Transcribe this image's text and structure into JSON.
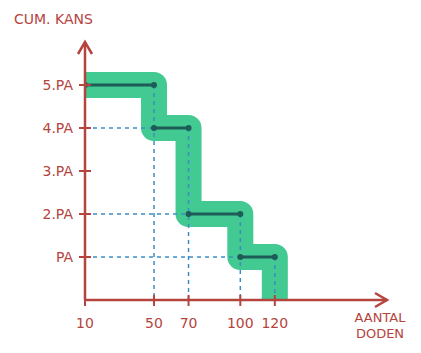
{
  "chart_data": {
    "type": "step",
    "y_label": "CUM. KANS",
    "x_label": "AANTAL DODEN",
    "x": [
      10,
      50,
      70,
      100
    ],
    "x_end": [
      50,
      70,
      100,
      120
    ],
    "values": [
      5,
      4,
      2,
      1
    ],
    "color": "#1d5c57",
    "xlim": [
      10,
      185
    ],
    "xticks": [
      10,
      50,
      70,
      100,
      120
    ],
    "ylim": [
      0,
      6
    ],
    "yticks": [
      {
        "value": 1,
        "label": "PA"
      },
      {
        "value": 2,
        "label": "2.PA"
      },
      {
        "value": 3,
        "label": "3.PA"
      },
      {
        "value": 4,
        "label": "4.PA"
      },
      {
        "value": 5,
        "label": "5.PA"
      }
    ]
  }
}
